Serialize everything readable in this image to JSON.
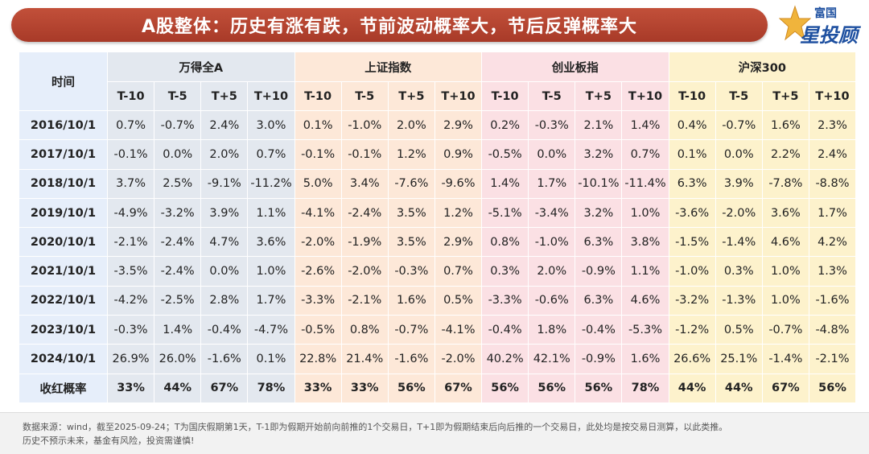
{
  "header": {
    "title": "A股整体：历史有涨有跌，节前波动概率大，节后反弹概率大"
  },
  "logo": {
    "top_text": "富国",
    "bottom_text": "星投顾",
    "color": "#1e50a0",
    "icon": "star-icon"
  },
  "table": {
    "time_header": "时间",
    "groups": [
      {
        "name": "万得全A",
        "color": "#e3e8ef"
      },
      {
        "name": "上证指数",
        "color": "#fde8d8"
      },
      {
        "name": "创业板指",
        "color": "#fbe0e4"
      },
      {
        "name": "沪深300",
        "color": "#fdf2cc"
      }
    ],
    "sub_headers": [
      "T-10",
      "T-5",
      "T+5",
      "T+10"
    ],
    "rows": [
      {
        "date": "2016/10/1",
        "values": [
          "0.7%",
          "-0.7%",
          "2.4%",
          "3.0%",
          "0.1%",
          "-1.0%",
          "2.0%",
          "2.9%",
          "0.2%",
          "-0.3%",
          "2.1%",
          "1.4%",
          "0.4%",
          "-0.7%",
          "1.6%",
          "2.3%"
        ]
      },
      {
        "date": "2017/10/1",
        "values": [
          "-0.1%",
          "0.0%",
          "2.0%",
          "0.7%",
          "-0.1%",
          "-0.1%",
          "1.2%",
          "0.9%",
          "-0.5%",
          "0.0%",
          "3.2%",
          "0.7%",
          "0.1%",
          "0.0%",
          "2.2%",
          "2.4%"
        ]
      },
      {
        "date": "2018/10/1",
        "values": [
          "3.7%",
          "2.5%",
          "-9.1%",
          "-11.2%",
          "5.0%",
          "3.4%",
          "-7.6%",
          "-9.6%",
          "1.4%",
          "1.7%",
          "-10.1%",
          "-11.4%",
          "6.3%",
          "3.9%",
          "-7.8%",
          "-8.8%"
        ]
      },
      {
        "date": "2019/10/1",
        "values": [
          "-4.9%",
          "-3.2%",
          "3.9%",
          "1.1%",
          "-4.1%",
          "-2.4%",
          "3.5%",
          "1.2%",
          "-5.1%",
          "-3.4%",
          "3.2%",
          "1.0%",
          "-3.6%",
          "-2.0%",
          "3.6%",
          "1.7%"
        ]
      },
      {
        "date": "2020/10/1",
        "values": [
          "-2.1%",
          "-2.4%",
          "4.7%",
          "3.6%",
          "-2.0%",
          "-1.9%",
          "3.5%",
          "2.9%",
          "0.8%",
          "-1.0%",
          "6.3%",
          "3.8%",
          "-1.5%",
          "-1.4%",
          "4.6%",
          "4.2%"
        ]
      },
      {
        "date": "2021/10/1",
        "values": [
          "-3.5%",
          "-2.4%",
          "0.0%",
          "1.0%",
          "-2.6%",
          "-2.0%",
          "-0.3%",
          "0.7%",
          "0.3%",
          "2.0%",
          "-0.9%",
          "1.1%",
          "-1.0%",
          "0.3%",
          "1.0%",
          "1.3%"
        ]
      },
      {
        "date": "2022/10/1",
        "values": [
          "-4.2%",
          "-2.5%",
          "2.8%",
          "1.7%",
          "-3.3%",
          "-2.1%",
          "1.6%",
          "0.5%",
          "-3.3%",
          "-0.6%",
          "6.3%",
          "4.6%",
          "-3.2%",
          "-1.3%",
          "1.0%",
          "-1.6%"
        ]
      },
      {
        "date": "2023/10/1",
        "values": [
          "-0.3%",
          "1.4%",
          "-0.4%",
          "-4.7%",
          "-0.5%",
          "0.8%",
          "-0.7%",
          "-4.1%",
          "-0.4%",
          "1.8%",
          "-0.4%",
          "-5.3%",
          "-1.2%",
          "0.5%",
          "-0.7%",
          "-4.8%"
        ]
      },
      {
        "date": "2024/10/1",
        "values": [
          "26.9%",
          "26.0%",
          "-1.6%",
          "0.1%",
          "22.8%",
          "21.4%",
          "-1.6%",
          "-2.0%",
          "40.2%",
          "42.1%",
          "-0.9%",
          "1.6%",
          "26.6%",
          "25.1%",
          "-1.4%",
          "-2.1%"
        ]
      },
      {
        "date": "收红概率",
        "values": [
          "33%",
          "44%",
          "67%",
          "78%",
          "33%",
          "33%",
          "56%",
          "67%",
          "56%",
          "56%",
          "56%",
          "78%",
          "44%",
          "44%",
          "67%",
          "56%"
        ]
      }
    ]
  },
  "footnote": {
    "line1": "数据来源：wind，截至2025-09-24；T为国庆假期第1天，T-1即为假期开始前向前推的1个交易日，T+1即为假期结束后向后推的一个交易日，此处均是按交易日测算，以此类推。",
    "line2": "历史不预示未来，基金有风险，投资需谨慎!"
  }
}
